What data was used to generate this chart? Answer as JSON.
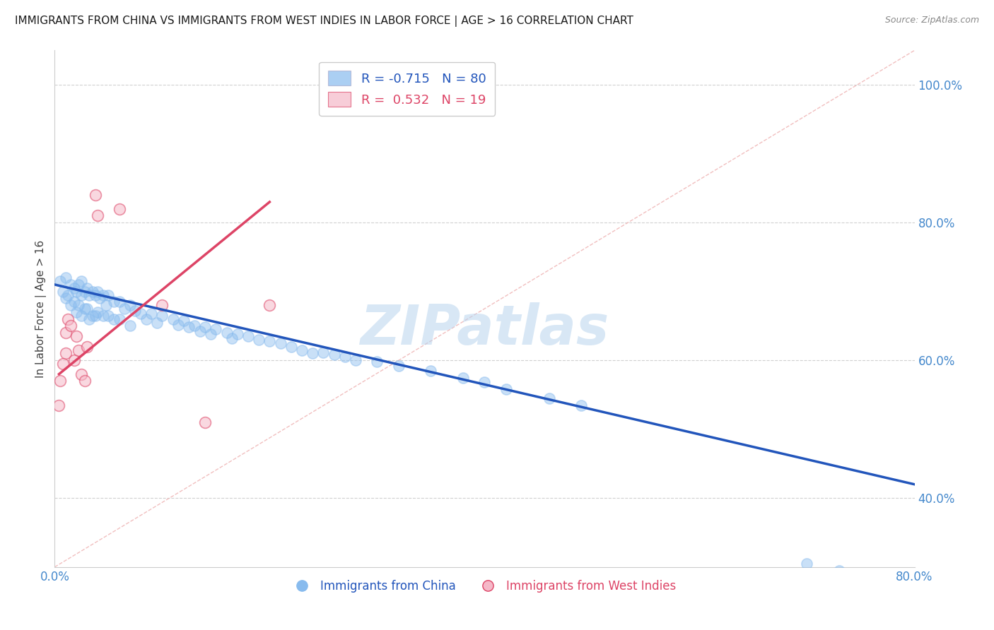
{
  "title": "IMMIGRANTS FROM CHINA VS IMMIGRANTS FROM WEST INDIES IN LABOR FORCE | AGE > 16 CORRELATION CHART",
  "source": "Source: ZipAtlas.com",
  "ylabel": "In Labor Force | Age > 16",
  "legend_blue_label": "Immigrants from China",
  "legend_pink_label": "Immigrants from West Indies",
  "legend_blue_r": "R = -0.715",
  "legend_blue_n": "N = 80",
  "legend_pink_r": "R =  0.532",
  "legend_pink_n": "N = 19",
  "xlim": [
    0.0,
    0.8
  ],
  "ylim": [
    0.3,
    1.05
  ],
  "yticks": [
    0.4,
    0.6,
    0.8,
    1.0
  ],
  "ytick_labels": [
    "40.0%",
    "60.0%",
    "80.0%",
    "100.0%"
  ],
  "title_color": "#1a1a1a",
  "source_color": "#888888",
  "axis_label_color": "#444444",
  "tick_color": "#4488cc",
  "grid_color": "#cccccc",
  "watermark_color": "#b8d4ee",
  "blue_scatter_color": "#88bbee",
  "blue_line_color": "#2255bb",
  "pink_scatter_color": "#f5b8c8",
  "pink_line_color": "#dd4466",
  "ref_line_color": "#f0b8b8",
  "blue_points_x": [
    0.005,
    0.008,
    0.01,
    0.01,
    0.012,
    0.015,
    0.015,
    0.018,
    0.018,
    0.02,
    0.02,
    0.022,
    0.022,
    0.025,
    0.025,
    0.025,
    0.028,
    0.028,
    0.03,
    0.03,
    0.032,
    0.032,
    0.035,
    0.035,
    0.038,
    0.038,
    0.04,
    0.04,
    0.042,
    0.045,
    0.045,
    0.048,
    0.05,
    0.05,
    0.055,
    0.055,
    0.06,
    0.06,
    0.065,
    0.07,
    0.07,
    0.075,
    0.08,
    0.085,
    0.09,
    0.095,
    0.1,
    0.11,
    0.115,
    0.12,
    0.125,
    0.13,
    0.135,
    0.14,
    0.145,
    0.15,
    0.16,
    0.165,
    0.17,
    0.18,
    0.19,
    0.2,
    0.21,
    0.22,
    0.23,
    0.24,
    0.25,
    0.26,
    0.27,
    0.28,
    0.3,
    0.32,
    0.35,
    0.38,
    0.4,
    0.42,
    0.46,
    0.49,
    0.7,
    0.73
  ],
  "blue_points_y": [
    0.715,
    0.7,
    0.72,
    0.69,
    0.695,
    0.71,
    0.68,
    0.705,
    0.685,
    0.7,
    0.67,
    0.71,
    0.68,
    0.715,
    0.695,
    0.665,
    0.7,
    0.675,
    0.705,
    0.675,
    0.695,
    0.66,
    0.7,
    0.665,
    0.695,
    0.665,
    0.7,
    0.67,
    0.69,
    0.695,
    0.665,
    0.68,
    0.695,
    0.665,
    0.685,
    0.66,
    0.685,
    0.66,
    0.675,
    0.68,
    0.65,
    0.672,
    0.668,
    0.66,
    0.668,
    0.655,
    0.665,
    0.66,
    0.652,
    0.658,
    0.648,
    0.65,
    0.642,
    0.648,
    0.638,
    0.645,
    0.64,
    0.632,
    0.638,
    0.635,
    0.63,
    0.628,
    0.625,
    0.62,
    0.615,
    0.61,
    0.612,
    0.608,
    0.605,
    0.6,
    0.598,
    0.592,
    0.585,
    0.575,
    0.568,
    0.558,
    0.545,
    0.535,
    0.305,
    0.295
  ],
  "pink_points_x": [
    0.004,
    0.005,
    0.008,
    0.01,
    0.01,
    0.012,
    0.015,
    0.018,
    0.02,
    0.022,
    0.025,
    0.028,
    0.03,
    0.038,
    0.04,
    0.06,
    0.1,
    0.14,
    0.2
  ],
  "pink_points_y": [
    0.535,
    0.57,
    0.595,
    0.64,
    0.61,
    0.66,
    0.65,
    0.6,
    0.635,
    0.615,
    0.58,
    0.57,
    0.62,
    0.84,
    0.81,
    0.82,
    0.68,
    0.51,
    0.68
  ],
  "blue_line_x": [
    0.0,
    0.8
  ],
  "blue_line_y": [
    0.71,
    0.42
  ],
  "pink_line_x": [
    0.004,
    0.2
  ],
  "pink_line_y": [
    0.58,
    0.83
  ],
  "ref_line_x": [
    0.0,
    0.8
  ],
  "ref_line_y": [
    0.3,
    1.05
  ]
}
